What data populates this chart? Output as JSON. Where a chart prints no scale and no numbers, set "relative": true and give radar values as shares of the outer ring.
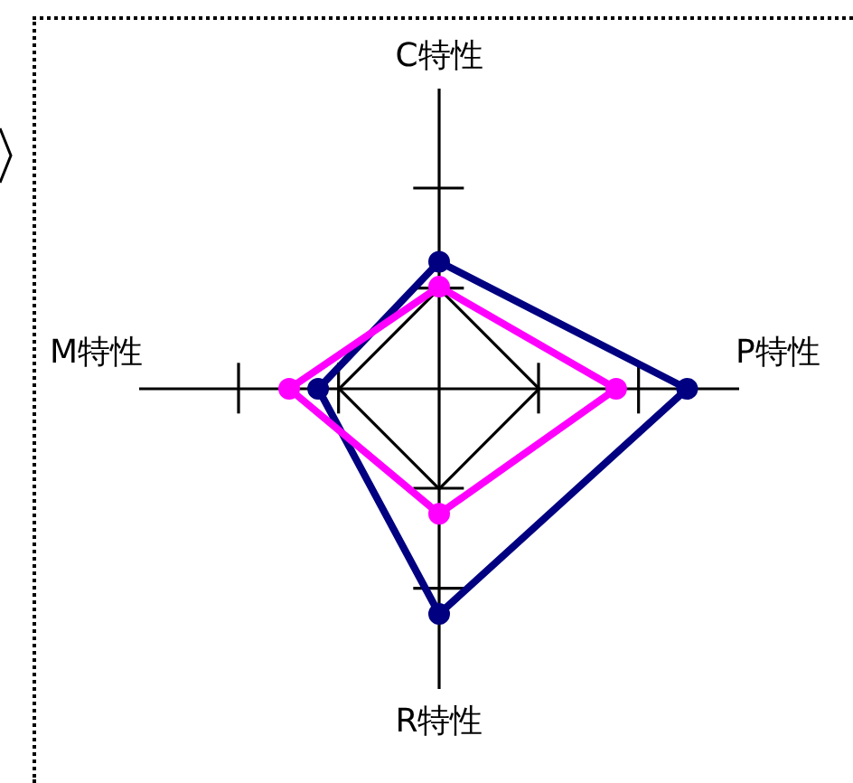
{
  "chart_data": {
    "type": "radar",
    "relative": true,
    "grid": true,
    "marker": "circle",
    "categories": [
      "C特性",
      "P特性",
      "R特性",
      "M特性"
    ],
    "series": [
      {
        "color": "#000080",
        "values": [
          1.27,
          2.48,
          2.25,
          1.21
        ]
      },
      {
        "color": "#ff00ff",
        "values": [
          1.02,
          1.77,
          1.25,
          1.5
        ]
      }
    ]
  }
}
